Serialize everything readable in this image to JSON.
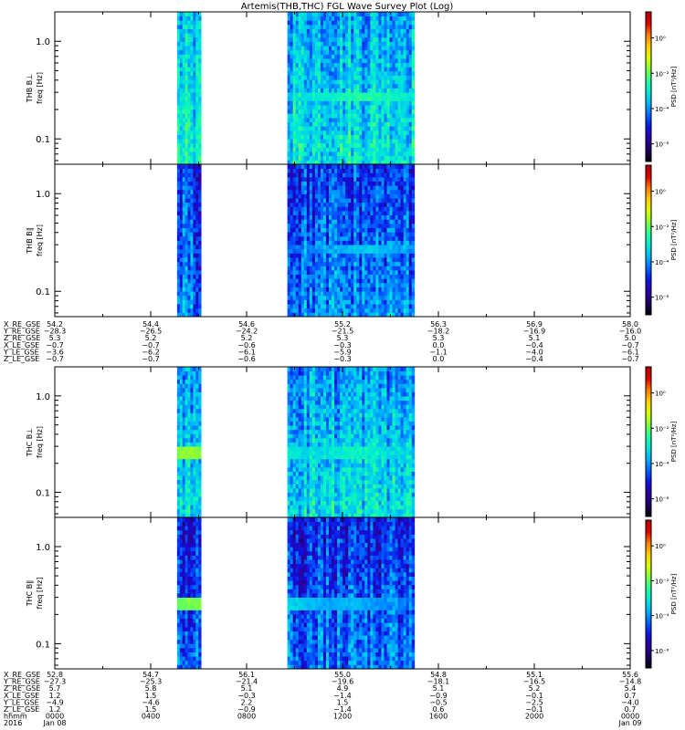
{
  "chart_data": {
    "type": "heatmap",
    "title": "Artemis(THB,THC) FGL Wave Survey Plot (Log)",
    "y_scale": "log",
    "ylim": [
      0.055,
      2.0
    ],
    "y_ticks": [
      {
        "value": 1.0,
        "label": "1.0"
      },
      {
        "value": 0.1,
        "label": "0.1"
      }
    ],
    "colorbar": {
      "title": "PSD [nT²/Hz]",
      "scale": "log",
      "range": [
        1e-07,
        30.0
      ],
      "ticks": [
        {
          "value": 1.0,
          "label": "10⁰"
        },
        {
          "value": 0.01,
          "label": "10⁻²"
        },
        {
          "value": 0.0001,
          "label": "10⁻⁴"
        },
        {
          "value": 1e-06,
          "label": "10⁻⁶"
        }
      ],
      "colormap": [
        "#000000",
        "#200060",
        "#2a00a0",
        "#1010e0",
        "#0060ff",
        "#00b0ff",
        "#00e8d8",
        "#20ffa0",
        "#80ff40",
        "#d8ff00",
        "#ffd000",
        "#ff8000",
        "#e00000",
        "#b00000"
      ]
    },
    "x_hours_range": [
      0,
      24
    ],
    "data_intervals_hours": [
      [
        5.1,
        6.1
      ],
      [
        9.7,
        15.0
      ]
    ],
    "panels": [
      {
        "label": "THB B⊥",
        "ylabel": "freq [Hz]",
        "group": "THB",
        "mean_log_psd": -3.3,
        "enhancements": [
          {
            "t": 13.0,
            "f": 0.27,
            "log_psd": -2.4
          }
        ]
      },
      {
        "label": "THB B∥",
        "ylabel": "freq [Hz]",
        "group": "THB",
        "mean_log_psd": -4.4,
        "enhancements": [
          {
            "t": 13.0,
            "f": 0.27,
            "log_psd": -3.4
          }
        ]
      },
      {
        "label": "THC B⊥",
        "ylabel": "freq [Hz]",
        "group": "THC",
        "mean_log_psd": -3.5,
        "enhancements": [
          {
            "t": 5.7,
            "f": 0.26,
            "log_psd": -1.6
          },
          {
            "t": 12.4,
            "f": 0.26,
            "log_psd": -2.8
          }
        ]
      },
      {
        "label": "THC B∥",
        "ylabel": "freq [Hz]",
        "group": "THC",
        "mean_log_psd": -4.6,
        "enhancements": [
          {
            "t": 5.6,
            "f": 0.26,
            "log_psd": -1.8
          },
          {
            "t": 12.4,
            "f": 0.26,
            "log_psd": -3.6
          }
        ]
      }
    ],
    "ephemeris": [
      {
        "rows": [
          {
            "label": "X_RE_GSE",
            "values": [
              "54.2",
              "54.4",
              "54.6",
              "55.2",
              "56.3",
              "56.9",
              "58.0"
            ]
          },
          {
            "label": "Y_RE_GSE",
            "values": [
              "−28.3",
              "−26.5",
              "−24.2",
              "−21.5",
              "−18.2",
              "−16.9",
              "−16.0"
            ]
          },
          {
            "label": "Z_RE_GSE",
            "values": [
              "5.3",
              "5.2",
              "5.2",
              "5.3",
              "5.3",
              "5.1",
              "5.0"
            ]
          },
          {
            "label": "X_LE_GSE",
            "values": [
              "−0.7",
              "−0.7",
              "−0.6",
              "−0.3",
              "0.0",
              "−0.4",
              "−0.7"
            ]
          },
          {
            "label": "Y_LE_GSE",
            "values": [
              "−3.6",
              "−6.2",
              "−6.1",
              "−5.9",
              "−1.1",
              "−4.0",
              "−6.1"
            ]
          },
          {
            "label": "Z_LE_GSE",
            "values": [
              "−0.7",
              "−0.7",
              "−0.6",
              "−0.3",
              "0.0",
              "−0.4",
              "−0.7"
            ]
          }
        ]
      },
      {
        "rows": [
          {
            "label": "X_RE_GSE",
            "values": [
              "52.8",
              "54.7",
              "56.1",
              "55.0",
              "54.8",
              "55.1",
              "55.6"
            ]
          },
          {
            "label": "Y_RE_GSE",
            "values": [
              "−27.3",
              "−25.3",
              "−21.4",
              "−19.6",
              "−18.1",
              "−16.5",
              "−14.8"
            ]
          },
          {
            "label": "Z_RE_GSE",
            "values": [
              "5.7",
              "5.8",
              "5.1",
              "4.9",
              "5.1",
              "5.2",
              "5.4"
            ]
          },
          {
            "label": "X_LE_GSE",
            "values": [
              "1.2",
              "1.5",
              "−0.3",
              "−1.4",
              "−0.9",
              "−0.1",
              "0.7"
            ]
          },
          {
            "label": "Y_LE_GSE",
            "values": [
              "−4.9",
              "−4.6",
              "2.2",
              "1.5",
              "−0.5",
              "−2.5",
              "−4.0"
            ]
          },
          {
            "label": "Z_LE_GSE",
            "values": [
              "1.2",
              "1.5",
              "−0.9",
              "−1.4",
              "0.6",
              "−0.1",
              "0.7"
            ]
          },
          {
            "label": "hhmm",
            "values": [
              "0000",
              "0400",
              "0800",
              "1200",
              "1600",
              "2000",
              "0000"
            ]
          },
          {
            "label": "2016",
            "values": [
              "Jan 08",
              "",
              "",
              "",
              "",
              "",
              "Jan 09"
            ]
          }
        ]
      }
    ]
  }
}
